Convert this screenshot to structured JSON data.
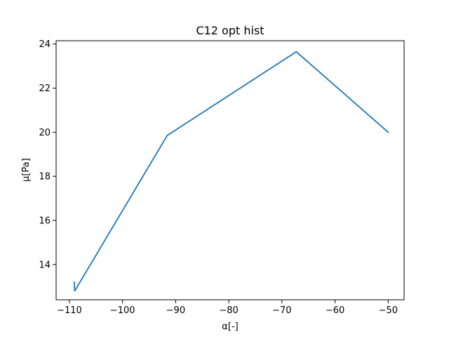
{
  "chart_data": {
    "type": "line",
    "title": "C12 opt hist",
    "xlabel": "α[-]",
    "ylabel": "μ[Pa]",
    "xlim": [
      -112.5,
      -47
    ],
    "ylim": [
      12.4,
      24.15
    ],
    "xticks": [
      -110,
      -100,
      -90,
      -80,
      -70,
      -60,
      -50
    ],
    "yticks": [
      14,
      16,
      18,
      20,
      22,
      24
    ],
    "grid": false,
    "line_color": "#1f77b4",
    "series": [
      {
        "x": [
          -109.1,
          -109.0,
          -91.6,
          -67.3,
          -50.0
        ],
        "y": [
          13.2,
          12.8,
          19.85,
          23.65,
          20.0
        ]
      }
    ]
  }
}
